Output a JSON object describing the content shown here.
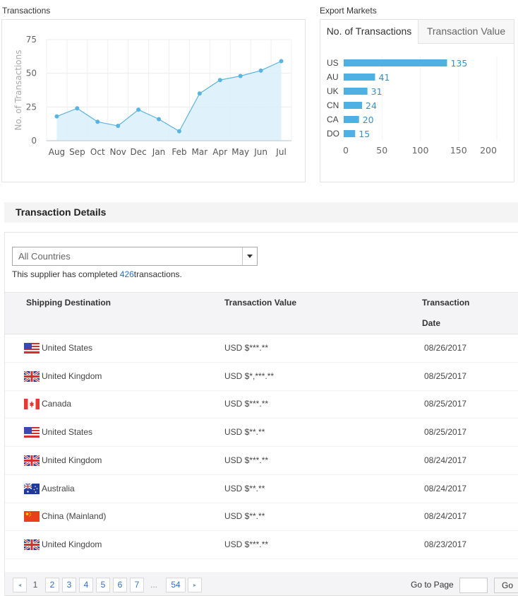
{
  "transactions_panel": {
    "label": "Transactions"
  },
  "export_panel": {
    "label": "Export Markets",
    "tabs": [
      {
        "label": "No. of Transactions",
        "active": true
      },
      {
        "label": "Transaction Value",
        "active": false
      }
    ]
  },
  "chart_data": [
    {
      "type": "area",
      "title": "Transactions",
      "xlabel": "",
      "ylabel": "No. of Transactions",
      "categories": [
        "Aug",
        "Sep",
        "Oct",
        "Nov",
        "Dec",
        "Jan",
        "Feb",
        "Mar",
        "Apr",
        "May",
        "Jun",
        "Jul"
      ],
      "values": [
        18,
        24,
        14,
        11,
        23,
        16,
        7,
        35,
        45,
        48,
        52,
        59
      ],
      "yticks": [
        0,
        25,
        50,
        75
      ],
      "ylim": [
        0,
        75
      ],
      "grid": true,
      "color": "#5ab4e0",
      "fill": "#d9eef9"
    },
    {
      "type": "bar",
      "orientation": "horizontal",
      "title": "Export Markets - No. of Transactions",
      "categories": [
        "US",
        "AU",
        "UK",
        "CN",
        "CA",
        "DO"
      ],
      "values": [
        135,
        41,
        31,
        24,
        20,
        15
      ],
      "xticks": [
        0,
        50,
        100,
        150,
        200
      ],
      "xlim": [
        0,
        200
      ],
      "data_labels": true,
      "color": "#4fb0e3",
      "label_color": "#3a8fc8"
    }
  ],
  "details": {
    "title": "Transaction Details",
    "filter": {
      "selected": "All Countries"
    },
    "summary": {
      "prefix": "This supplier has completed",
      "count": "426",
      "suffix": "transactions."
    },
    "columns": {
      "destination": "Shipping Destination",
      "value": "Transaction Value",
      "date_line1": "Transaction",
      "date_line2": "Date"
    },
    "rows": [
      {
        "flag": "us",
        "country": "United States",
        "value": "USD $***.**",
        "date": "08/26/2017"
      },
      {
        "flag": "uk",
        "country": "United Kingdom",
        "value": "USD $*,***.**",
        "date": "08/25/2017"
      },
      {
        "flag": "ca",
        "country": "Canada",
        "value": "USD $***.**",
        "date": "08/25/2017"
      },
      {
        "flag": "us",
        "country": "United States",
        "value": "USD $**.**",
        "date": "08/25/2017"
      },
      {
        "flag": "uk",
        "country": "United Kingdom",
        "value": "USD $***.**",
        "date": "08/24/2017"
      },
      {
        "flag": "au",
        "country": "Australia",
        "value": "USD $**.**",
        "date": "08/24/2017"
      },
      {
        "flag": "cn",
        "country": "China (Mainland)",
        "value": "USD $**.**",
        "date": "08/24/2017"
      },
      {
        "flag": "uk",
        "country": "United Kingdom",
        "value": "USD $***.**",
        "date": "08/23/2017"
      }
    ]
  },
  "pagination": {
    "prev_icon": "◂",
    "next_icon": "▸",
    "current": "1",
    "pages": [
      "2",
      "3",
      "4",
      "5",
      "6",
      "7"
    ],
    "ellipsis": "...",
    "last": "54",
    "goto_label": "Go to Page",
    "goto_value": "",
    "go_button": "Go"
  }
}
